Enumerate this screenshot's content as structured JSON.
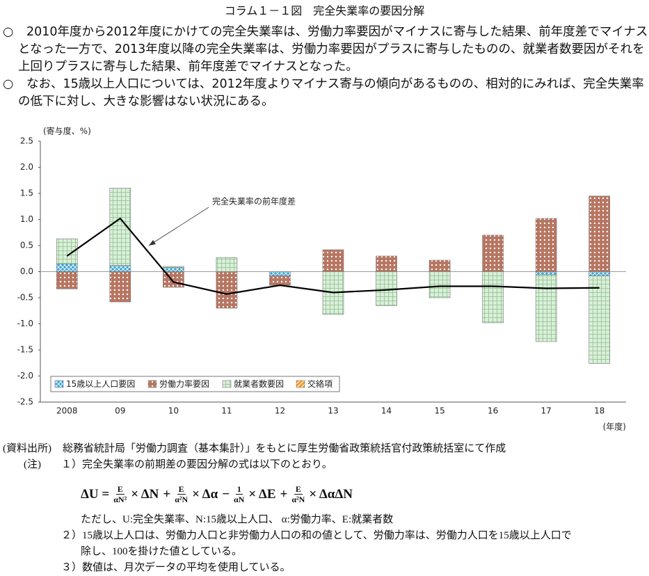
{
  "header": {
    "title": "コラム１－１図　完全失業率の要因分解"
  },
  "bullets": [
    "2010年度から2012年度にかけての完全失業率は、労働力率要因がマイナスに寄与した結果、前年度差でマイナスとなった一方で、2013年度以降の完全失業率は、労働力率要因がプラスに寄与したものの、就業者数要因がそれを上回りプラスに寄与した結果、前年度差でマイナスとなった。",
    "なお、15歳以上人口については、2012年度よりマイナス寄与の傾向があるものの、相対的にみれば、完全失業率の低下に対し、大きな影響はない状況にある。"
  ],
  "chart_data": {
    "type": "bar",
    "stacked": true,
    "y_label": "(寄与度、%)",
    "x_label": "(年度)",
    "categories": [
      "2008",
      "09",
      "10",
      "11",
      "12",
      "13",
      "14",
      "15",
      "16",
      "17",
      "18"
    ],
    "ylim": [
      -2.5,
      2.5
    ],
    "yticks": [
      2.5,
      {
        "value": 2,
        "label": "2.0"
      },
      1.5,
      {
        "value": 1,
        "label": "1.0"
      },
      0.5,
      {
        "value": 0,
        "label": "0.0"
      },
      -0.5,
      {
        "value": -1,
        "label": "-1.0"
      },
      -1.5,
      {
        "value": -2,
        "label": "-2.0"
      },
      -2.5
    ],
    "grid": false,
    "legend": "bottom-left",
    "series": [
      {
        "name": "15歳以上人口要因",
        "color": "#3aa6d6",
        "pattern": "crosshatch",
        "values": [
          0.15,
          0.12,
          0.08,
          0,
          -0.08,
          0,
          0,
          0,
          0,
          -0.06,
          -0.08
        ]
      },
      {
        "name": "労働力率要因",
        "color": "#b77662",
        "pattern": "dots",
        "values": [
          -0.33,
          -0.58,
          -0.3,
          -0.7,
          -0.18,
          0.42,
          0.3,
          0.22,
          0.7,
          1.02,
          1.45
        ]
      },
      {
        "name": "就業者数要因",
        "color": "#d9efd9",
        "pattern": "grid",
        "values": [
          0.48,
          1.48,
          0.02,
          0.27,
          0,
          -0.82,
          -0.65,
          -0.5,
          -0.98,
          -1.28,
          -1.68
        ]
      },
      {
        "name": "交絡項",
        "color": "#f0a030",
        "pattern": "hatch",
        "values": [
          0,
          0,
          0,
          0,
          0,
          0,
          0,
          0,
          0,
          0,
          0
        ]
      }
    ],
    "line": {
      "name": "完全失業率の前年度差",
      "color": "#000000",
      "values": [
        0.3,
        1.02,
        -0.2,
        -0.43,
        -0.26,
        -0.4,
        -0.35,
        -0.28,
        -0.28,
        -0.32,
        -0.31
      ]
    }
  },
  "notes": {
    "source_label": "(資料出所)",
    "source": "総務省統計局「労働力調査（基本集計）」をもとに厚生労働省政策統括官付政策統括室にて作成",
    "note_label": "(注)",
    "note1": "１）完全失業率の前期差の要因分解の式は以下のとおり。",
    "formula": {
      "lhs": "ΔU =",
      "terms": [
        {
          "num": "E",
          "den": "αN²",
          "var": "× ΔN"
        },
        {
          "op": "+",
          "num": "E",
          "den": "α²N",
          "var": "× Δα"
        },
        {
          "op": "−",
          "num": "1",
          "den": "αN",
          "var": "× ΔE"
        },
        {
          "op": "+",
          "num": "E",
          "den": "α²N",
          "var": "× ΔαΔN"
        }
      ]
    },
    "definitions": "ただし、U:完全失業率、N:15歳以上人口、 α:労働力率、E:就業者数",
    "note2_line1": "２）15歳以上人口は、労働力人口と非労働力人口の和の値として、労働力率は、労働力人口を15歳以上人口で",
    "note2_line2": "除し、100を掛けた値としている。",
    "note3": "３）数値は、月次データの平均を使用している。"
  }
}
